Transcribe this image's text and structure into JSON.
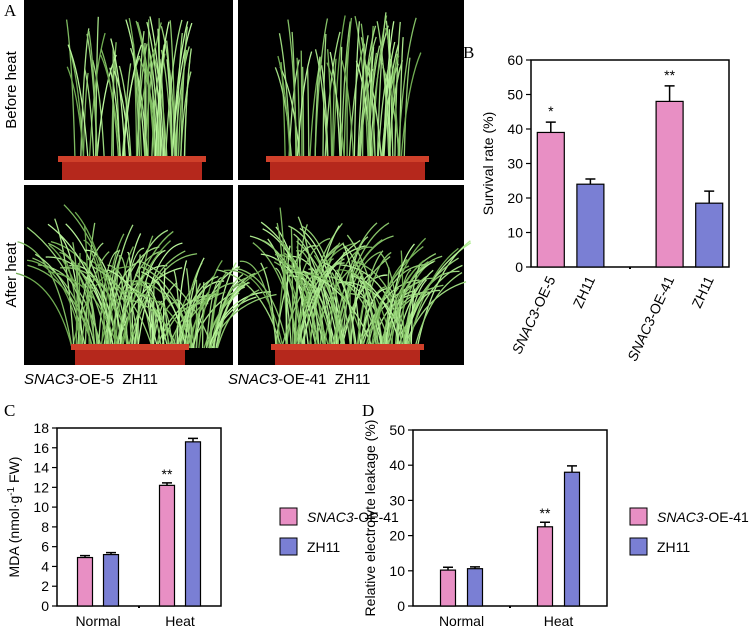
{
  "photo_panel": {
    "label": "A",
    "row_labels": [
      "Before heat",
      "After heat"
    ],
    "captions": [
      "SNAC3-OE-5  ZH11",
      "SNAC3-OE-41  ZH11"
    ]
  },
  "chart_data": [
    {
      "type": "bar",
      "panel_label": "B",
      "y_label": "Survival rate (%)",
      "categories": [
        "SNAC3-OE-5",
        "ZH11",
        null,
        "SNAC3-OE-41",
        "ZH11"
      ],
      "values": [
        39,
        24,
        null,
        48,
        18.5
      ],
      "errors": [
        3,
        1.5,
        null,
        4.5,
        3.5
      ],
      "colors": [
        "#e88fc4",
        "#7a7fd4",
        null,
        "#e88fc4",
        "#7a7fd4"
      ],
      "annotations": [
        {
          "text": "*",
          "category": 0
        },
        {
          "text": "**",
          "category": 3
        }
      ],
      "ylim": [
        0,
        60
      ],
      "yticks": [
        0,
        10,
        20,
        30,
        40,
        50,
        60
      ]
    },
    {
      "type": "grouped-bar",
      "panel_label": "C",
      "y_label": "MDA (nmol·g",
      "y_label_sup": "-1",
      "y_label_tail": " FW)",
      "categories": [
        "Normal",
        "Heat"
      ],
      "series": [
        {
          "name": "SNAC3-OE-41",
          "color": "#e88fc4",
          "values": [
            4.9,
            12.2
          ],
          "errors": [
            0.2,
            0.25
          ]
        },
        {
          "name": "ZH11",
          "color": "#7a7fd4",
          "values": [
            5.2,
            16.6
          ],
          "errors": [
            0.2,
            0.35
          ]
        }
      ],
      "annotations": [
        {
          "text": "**",
          "series": 0,
          "category": 1
        }
      ],
      "ylim": [
        0,
        18
      ],
      "yticks": [
        0,
        2,
        4,
        6,
        8,
        10,
        12,
        14,
        16,
        18
      ]
    },
    {
      "type": "grouped-bar",
      "panel_label": "D",
      "y_label": "Relative electrolyte leakage (%)",
      "categories": [
        "Normal",
        "Heat"
      ],
      "series": [
        {
          "name": "SNAC3-OE-41",
          "color": "#e88fc4",
          "values": [
            10.2,
            22.5
          ],
          "errors": [
            0.8,
            1.3
          ]
        },
        {
          "name": "ZH11",
          "color": "#7a7fd4",
          "values": [
            10.6,
            38
          ],
          "errors": [
            0.5,
            1.8
          ]
        }
      ],
      "annotations": [
        {
          "text": "**",
          "series": 0,
          "category": 1
        }
      ],
      "ylim": [
        0,
        50
      ],
      "yticks": [
        0,
        10,
        20,
        30,
        40,
        50
      ]
    }
  ]
}
